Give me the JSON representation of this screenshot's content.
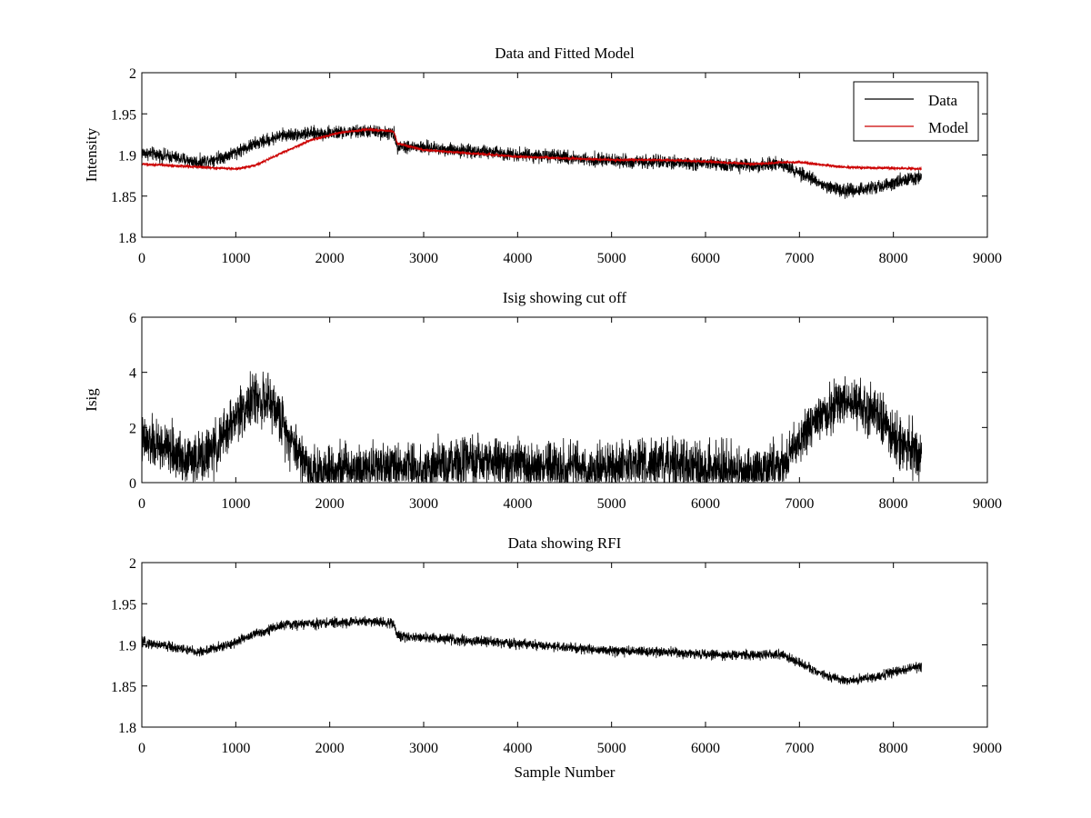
{
  "chart_data": [
    {
      "type": "line",
      "title": "Data and Fitted Model",
      "xlabel": "",
      "ylabel": "Intensity",
      "xlim": [
        0,
        9000
      ],
      "ylim": [
        1.8,
        2.0
      ],
      "xticks": [
        0,
        1000,
        2000,
        3000,
        4000,
        5000,
        6000,
        7000,
        8000,
        9000
      ],
      "xtick_labels": [
        "0",
        "1000",
        "2000",
        "3000",
        "4000",
        "5000",
        "6000",
        "7000",
        "8000",
        "9000"
      ],
      "yticks": [
        1.8,
        1.85,
        1.9,
        1.95,
        2.0
      ],
      "ytick_labels": [
        "1.8",
        "1.85",
        "1.9",
        "1.95",
        "2"
      ],
      "grid": false,
      "legend": "top-right",
      "series": [
        {
          "name": "Data",
          "color": "#000000",
          "x": [
            0,
            300,
            600,
            900,
            1200,
            1500,
            1800,
            2100,
            2400,
            2680,
            2720,
            3000,
            3500,
            4000,
            4500,
            5000,
            5500,
            6000,
            6500,
            6800,
            7000,
            7200,
            7500,
            7800,
            8100,
            8300
          ],
          "values": [
            1.903,
            1.898,
            1.891,
            1.899,
            1.913,
            1.924,
            1.926,
            1.927,
            1.929,
            1.926,
            1.911,
            1.909,
            1.905,
            1.901,
            1.897,
            1.893,
            1.891,
            1.889,
            1.887,
            1.889,
            1.878,
            1.866,
            1.856,
            1.861,
            1.869,
            1.874
          ],
          "noise": 0.004
        },
        {
          "name": "Model",
          "color": "#cc0000",
          "x": [
            0,
            500,
            1000,
            1200,
            1500,
            1800,
            2100,
            2400,
            2680,
            2720,
            3000,
            3500,
            4000,
            4500,
            5000,
            5500,
            6000,
            6500,
            6800,
            7000,
            7500,
            8000,
            8300
          ],
          "values": [
            1.889,
            1.886,
            1.883,
            1.887,
            1.903,
            1.918,
            1.927,
            1.931,
            1.929,
            1.914,
            1.906,
            1.902,
            1.898,
            1.896,
            1.894,
            1.894,
            1.892,
            1.889,
            1.891,
            1.891,
            1.885,
            1.884,
            1.883
          ],
          "noise": 0.0006
        }
      ]
    },
    {
      "type": "line",
      "title": "Isig showing cut off",
      "xlabel": "",
      "ylabel": "Isig",
      "xlim": [
        0,
        9000
      ],
      "ylim": [
        0,
        6
      ],
      "xticks": [
        0,
        1000,
        2000,
        3000,
        4000,
        5000,
        6000,
        7000,
        8000,
        9000
      ],
      "xtick_labels": [
        "0",
        "1000",
        "2000",
        "3000",
        "4000",
        "5000",
        "6000",
        "7000",
        "8000",
        "9000"
      ],
      "yticks": [
        0,
        2,
        4,
        6
      ],
      "ytick_labels": [
        "0",
        "2",
        "4",
        "6"
      ],
      "grid": false,
      "series": [
        {
          "color": "#000000",
          "x": [
            0,
            200,
            400,
            600,
            800,
            1000,
            1200,
            1400,
            1600,
            1800,
            2000,
            2500,
            3000,
            3500,
            3700,
            4000,
            4500,
            5000,
            5500,
            6000,
            6500,
            6800,
            7000,
            7200,
            7500,
            7800,
            8000,
            8300
          ],
          "values": [
            1.5,
            1.3,
            1.0,
            0.8,
            1.3,
            2.4,
            3.1,
            2.8,
            1.5,
            0.4,
            0.5,
            0.6,
            0.5,
            0.7,
            0.8,
            0.6,
            0.5,
            0.5,
            0.7,
            0.5,
            0.4,
            0.6,
            1.5,
            2.4,
            3.0,
            2.6,
            1.7,
            1.0
          ],
          "noise": 0.45
        }
      ]
    },
    {
      "type": "line",
      "title": "Data showing RFI",
      "xlabel": "Sample Number",
      "ylabel": "",
      "xlim": [
        0,
        9000
      ],
      "ylim": [
        1.8,
        2.0
      ],
      "xticks": [
        0,
        1000,
        2000,
        3000,
        4000,
        5000,
        6000,
        7000,
        8000,
        9000
      ],
      "xtick_labels": [
        "0",
        "1000",
        "2000",
        "3000",
        "4000",
        "5000",
        "6000",
        "7000",
        "8000",
        "9000"
      ],
      "yticks": [
        1.8,
        1.85,
        1.9,
        1.95,
        2.0
      ],
      "ytick_labels": [
        "1.8",
        "1.85",
        "1.9",
        "1.95",
        "2"
      ],
      "grid": false,
      "series": [
        {
          "color": "#000000",
          "x": [
            0,
            300,
            600,
            900,
            1200,
            1500,
            1800,
            2100,
            2400,
            2680,
            2720,
            3000,
            3500,
            4000,
            4500,
            5000,
            5500,
            6000,
            6500,
            6800,
            7000,
            7200,
            7500,
            7800,
            8100,
            8300
          ],
          "values": [
            1.903,
            1.898,
            1.891,
            1.899,
            1.913,
            1.924,
            1.926,
            1.927,
            1.929,
            1.926,
            1.911,
            1.909,
            1.905,
            1.901,
            1.897,
            1.893,
            1.891,
            1.889,
            1.887,
            1.889,
            1.878,
            1.866,
            1.856,
            1.861,
            1.869,
            1.874
          ],
          "noise": 0.003
        }
      ]
    }
  ]
}
